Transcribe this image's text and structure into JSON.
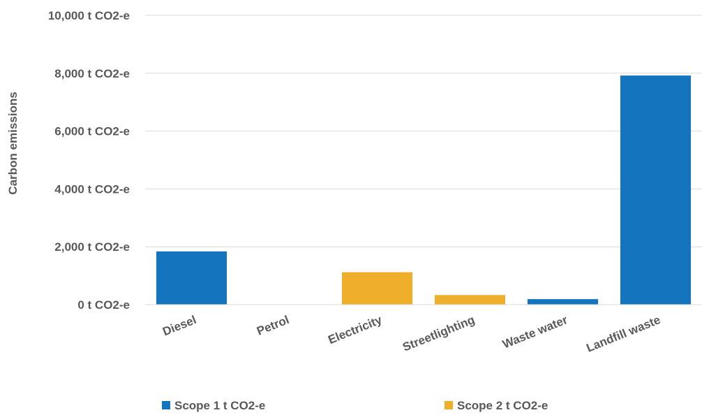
{
  "chart_data": {
    "type": "bar",
    "title": "",
    "xlabel": "",
    "ylabel": "Carbon emissions",
    "ylim": [
      0,
      10000
    ],
    "yticks": [
      {
        "value": 0,
        "label": "0 t CO2-e"
      },
      {
        "value": 2000,
        "label": "2,000 t CO2-e"
      },
      {
        "value": 4000,
        "label": "4,000 t CO2-e"
      },
      {
        "value": 6000,
        "label": "6,000 t CO2-e"
      },
      {
        "value": 8000,
        "label": "8,000 t CO2-e"
      },
      {
        "value": 10000,
        "label": "10,000 t CO2-e"
      }
    ],
    "grid": true,
    "legend_position": "bottom",
    "categories": [
      "Diesel",
      "Petrol",
      "Electricity",
      "Streetlighting",
      "Waste water",
      "Landfill waste"
    ],
    "series": [
      {
        "name": "Scope 1 t CO2-e",
        "color": "#1474BD",
        "values": [
          1840,
          0,
          null,
          null,
          190,
          7920
        ]
      },
      {
        "name": "Scope 2 t CO2-e",
        "color": "#F0AF2A",
        "values": [
          null,
          null,
          1120,
          330,
          null,
          null
        ]
      }
    ]
  }
}
